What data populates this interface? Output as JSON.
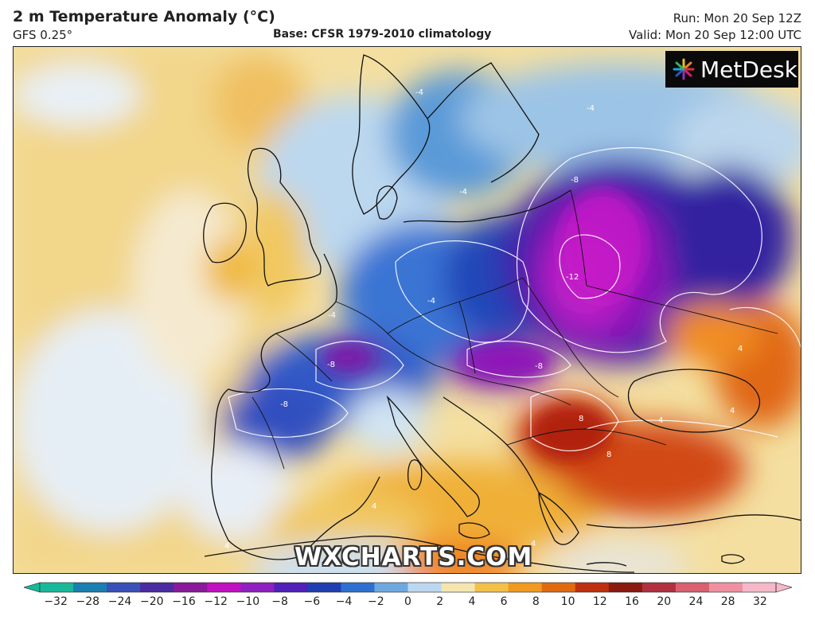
{
  "header": {
    "title": "2 m Temperature Anomaly (°C)",
    "model": "GFS 0.25°",
    "base": "Base: CFSR 1979-2010 climatology",
    "run": "Run: Mon 20 Sep 12Z",
    "valid": "Valid: Mon 20 Sep 12:00 UTC"
  },
  "logo": {
    "text": "MetDesk",
    "icon": "metdesk-burst-icon"
  },
  "watermark": "WXCHARTS.COM",
  "map": {
    "region": "Europe",
    "contour_labels": [
      "-4",
      "-4",
      "-4",
      "-4",
      "-8",
      "-8",
      "-8",
      "-8",
      "-12",
      "-4",
      "4",
      "4",
      "4",
      "4",
      "8",
      "8",
      "4",
      "4"
    ]
  },
  "colorbar": {
    "ticks": [
      "−32",
      "−28",
      "−24",
      "−20",
      "−16",
      "−12",
      "−10",
      "−8",
      "−6",
      "−4",
      "−2",
      "0",
      "2",
      "4",
      "6",
      "8",
      "10",
      "12",
      "16",
      "20",
      "24",
      "28",
      "32"
    ],
    "colors": [
      "#18b89a",
      "#1a7fb0",
      "#3a4fb8",
      "#4a2ca0",
      "#8a1a9a",
      "#c010c0",
      "#8e20c0",
      "#5020b8",
      "#1f3fb0",
      "#2f6fd0",
      "#6fa8e0",
      "#bcd8f0",
      "#f5e6b0",
      "#f3c04a",
      "#f09a20",
      "#e06a10",
      "#c03010",
      "#8a1a10",
      "#b03040",
      "#d86070",
      "#f090a0",
      "#f5b8c8"
    ]
  }
}
